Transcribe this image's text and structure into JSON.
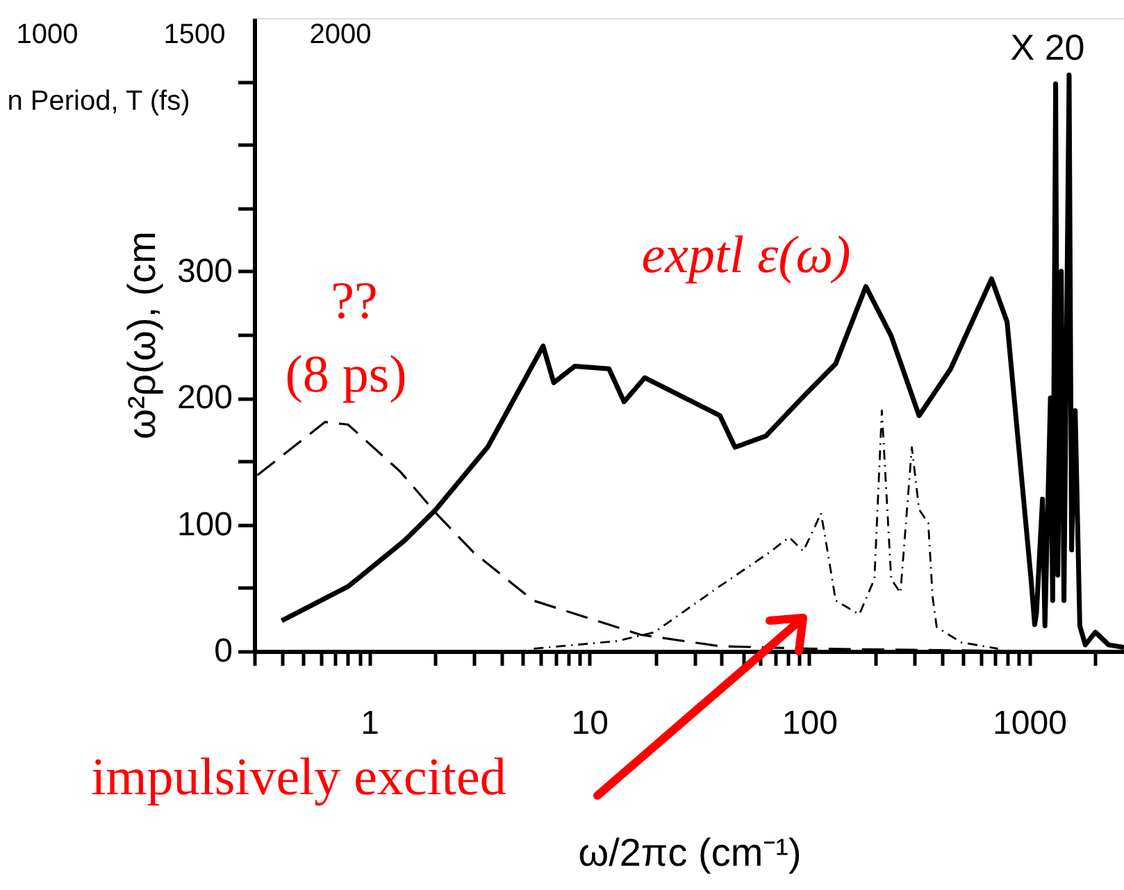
{
  "chart_data": {
    "type": "line",
    "xlabel": "ω/2πc (cm⁻¹)",
    "ylabel": "ω²ρ(ω), (cm",
    "log": "x",
    "grid": false,
    "marker": "none",
    "xlim": [
      0.3,
      2700
    ],
    "ylim": [
      0,
      500
    ],
    "xticks": [
      {
        "value": 0.3,
        "label": null
      },
      {
        "value": 0.4,
        "label": null
      },
      {
        "value": 0.5,
        "label": null
      },
      {
        "value": 0.6,
        "label": null
      },
      {
        "value": 0.7,
        "label": null
      },
      {
        "value": 0.8,
        "label": null
      },
      {
        "value": 0.9,
        "label": null
      },
      1,
      {
        "value": 2,
        "label": null
      },
      {
        "value": 3,
        "label": null
      },
      {
        "value": 4,
        "label": null
      },
      {
        "value": 5,
        "label": null
      },
      {
        "value": 6,
        "label": null
      },
      {
        "value": 7,
        "label": null
      },
      {
        "value": 8,
        "label": null
      },
      {
        "value": 9,
        "label": null
      },
      10,
      {
        "value": 20,
        "label": null
      },
      {
        "value": 30,
        "label": null
      },
      {
        "value": 40,
        "label": null
      },
      {
        "value": 50,
        "label": null
      },
      {
        "value": 60,
        "label": null
      },
      {
        "value": 70,
        "label": null
      },
      {
        "value": 80,
        "label": null
      },
      {
        "value": 90,
        "label": null
      },
      100,
      {
        "value": 200,
        "label": null
      },
      {
        "value": 300,
        "label": null
      },
      {
        "value": 400,
        "label": null
      },
      {
        "value": 500,
        "label": null
      },
      {
        "value": 600,
        "label": null
      },
      {
        "value": 700,
        "label": null
      },
      {
        "value": 800,
        "label": null
      },
      {
        "value": 900,
        "label": null
      },
      1000,
      {
        "value": 2000,
        "label": null
      }
    ],
    "yticks": [
      0,
      {
        "value": 50,
        "label": null
      },
      100,
      {
        "value": 150,
        "label": null
      },
      200,
      {
        "value": 250,
        "label": null
      },
      300,
      {
        "value": 350,
        "label": null
      },
      {
        "value": 400,
        "label": null
      },
      {
        "value": 450,
        "label": null
      }
    ],
    "series": [
      {
        "color": "#000000",
        "line_style": "solid",
        "x": [
          0.4,
          0.8,
          1.44,
          2.01,
          3.45,
          6.17,
          6.9,
          8.6,
          12.3,
          14.4,
          17.9,
          39.3,
          46,
          63.6,
          94,
          132,
          181,
          236,
          316,
          440,
          675,
          794,
          1020,
          1060,
          1080,
          1150,
          1180,
          1250,
          1280,
          1320,
          1350,
          1400,
          1440,
          1480,
          1520,
          1560,
          1620,
          1700,
          1800,
          2000,
          2300,
          2700
        ],
        "values": [
          24,
          51,
          87,
          112,
          161,
          241,
          212,
          225,
          223,
          197,
          216,
          186,
          161,
          170,
          201,
          227,
          288,
          249,
          186,
          223,
          294,
          260,
          57,
          21,
          30,
          120,
          20,
          200,
          40,
          448,
          60,
          300,
          40,
          250,
          455,
          80,
          190,
          20,
          5,
          15,
          5,
          3
        ]
      },
      {
        "color": "#000000",
        "line_style": "dashed",
        "x": [
          0.31,
          0.63,
          0.8,
          1.38,
          2.01,
          2.98,
          5.57,
          17.1,
          39,
          100,
          300,
          1000
        ],
        "values": [
          139,
          181,
          179,
          142,
          109,
          78,
          40,
          13,
          4,
          2,
          1,
          0
        ]
      },
      {
        "color": "#000000",
        "line_style": "dotted",
        "x": [
          5.6,
          13.4,
          19.8,
          39,
          66,
          81,
          94,
          106,
          113,
          117,
          132,
          169,
          198,
          214,
          236,
          260,
          293,
          316,
          348,
          364,
          380,
          490,
          722
        ],
        "values": [
          2,
          8,
          15,
          51,
          78,
          90,
          79,
          98,
          109,
          95,
          40,
          29,
          57,
          190,
          57,
          46,
          161,
          112,
          101,
          43,
          19,
          7,
          2
        ]
      }
    ],
    "annotations": [
      "??",
      "(8 ps)",
      "exptl ε(ω)",
      "impulsively excited",
      "X 20",
      "1000",
      "1500",
      "2000",
      "n Period, T (fs)"
    ]
  }
}
